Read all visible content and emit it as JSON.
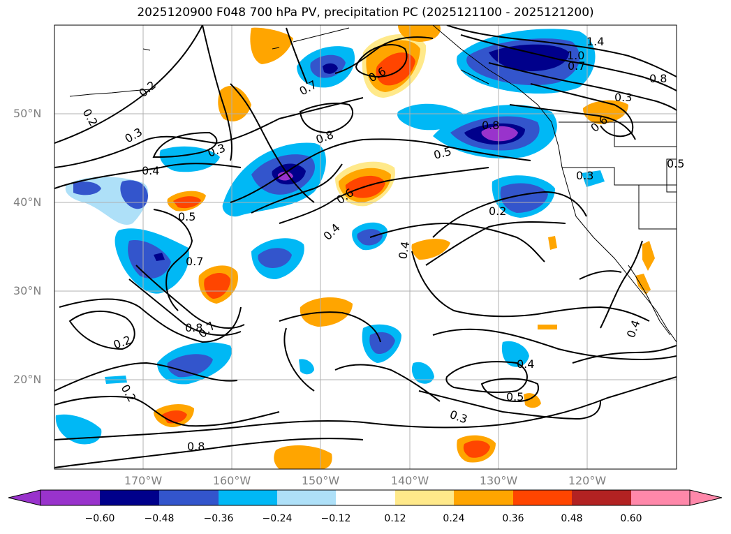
{
  "title": "2025120900 F048 700 hPa PV, precipitation PC (2025121100 - 2025121200)",
  "map": {
    "lat_ticks": [
      "50°N",
      "40°N",
      "30°N",
      "20°N"
    ],
    "lon_ticks": [
      "170°W",
      "160°W",
      "150°W",
      "140°W",
      "130°W",
      "120°W"
    ],
    "contour_labels": [
      "0.2",
      "0.2",
      "0.3",
      "0.3",
      "0.4",
      "0.5",
      "0.7",
      "0.8",
      "0.7",
      "0.6",
      "0.8",
      "0.5",
      "0.6",
      "0.4",
      "0.4",
      "0.3",
      "0.2",
      "0.8",
      "1.0",
      "1.4",
      "0.7",
      "0.8",
      "0.3",
      "0.6",
      "0.5",
      "0.4",
      "0.5",
      "0.3",
      "0.2",
      "0.2",
      "0.4",
      "0.7",
      "0.8"
    ],
    "colors": {
      "coast": "#000000",
      "grid": "#b0b0b0",
      "contour": "#000000"
    }
  },
  "colorbar": {
    "ticks": [
      "−0.60",
      "−0.48",
      "−0.36",
      "−0.24",
      "−0.12",
      "0.12",
      "0.24",
      "0.36",
      "0.48",
      "0.60"
    ],
    "colors": [
      "#9933cc",
      "#00008b",
      "#3355cc",
      "#00b8f5",
      "#aee0f8",
      "#ffffff",
      "#ffe98a",
      "#ffa500",
      "#ff4500",
      "#b22222",
      "#ff88aa"
    ]
  }
}
